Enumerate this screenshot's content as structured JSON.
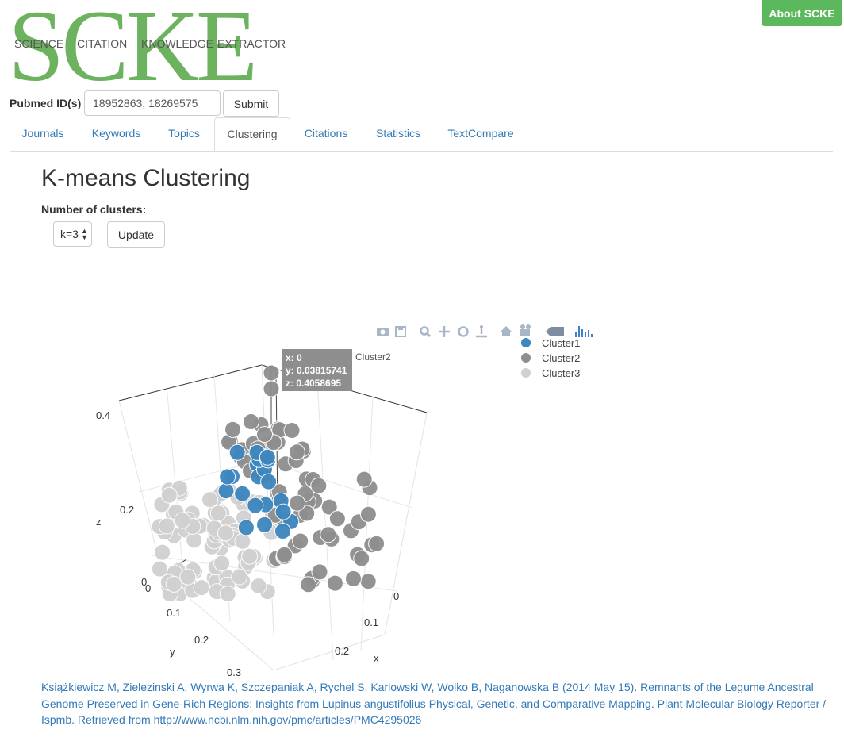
{
  "logo": {
    "letters": "SCKE",
    "words": [
      "SCIENCE",
      "CITATION",
      "KNOWLEDGE",
      "EXTRACTOR"
    ]
  },
  "header": {
    "about_label": "About SCKE"
  },
  "form": {
    "label": "Pubmed ID(s)",
    "input_value": "18952863, 18269575",
    "submit_label": "Submit"
  },
  "tabs": [
    {
      "label": "Journals",
      "active": false
    },
    {
      "label": "Keywords",
      "active": false
    },
    {
      "label": "Topics",
      "active": false
    },
    {
      "label": "Clustering",
      "active": true
    },
    {
      "label": "Citations",
      "active": false
    },
    {
      "label": "Statistics",
      "active": false
    },
    {
      "label": "TextCompare",
      "active": false
    }
  ],
  "main": {
    "title": "K-means Clustering",
    "k_label": "Number of clusters:",
    "k_value": "k=3",
    "update_label": "Update"
  },
  "plot": {
    "modebar_icons": [
      "camera-icon",
      "save-icon",
      "zoom-icon",
      "pan-icon",
      "orbit-icon",
      "turntable-icon",
      "home-icon",
      "reset-camera-icon",
      "hover-icon",
      "plotly-logo-icon"
    ],
    "tooltip": {
      "x": "x: 0",
      "y": "y: 0.03815741",
      "z": "z: 0.4058695",
      "series": "Cluster2"
    }
  },
  "chart_data": {
    "type": "scatter",
    "legend_placement": "top-right",
    "series": [
      {
        "name": "Cluster1",
        "color": "#3d86be"
      },
      {
        "name": "Cluster2",
        "color": "#8e8e8e"
      },
      {
        "name": "Cluster3",
        "color": "#d0d0d0"
      }
    ],
    "axes": {
      "x": {
        "label": "x",
        "ticks": [
          "0",
          "0.1",
          "0.2"
        ]
      },
      "y": {
        "label": "y",
        "ticks": [
          "0",
          "0.1",
          "0.2",
          "0.3"
        ]
      },
      "z": {
        "label": "z",
        "ticks": [
          "0",
          "0.2",
          "0.4"
        ]
      }
    }
  },
  "citation": "Książkiewicz M, Zielezinski A, Wyrwa K, Szczepaniak A, Rychel S, Karlowski W, Wolko B, Naganowska B (2014 May 15). Remnants of the Legume Ancestral Genome Preserved in Gene-Rich Regions: Insights from Lupinus angustifolius Physical, Genetic, and Comparative Mapping. Plant Molecular Biology Reporter / Ispmb. Retrieved from http://www.ncbi.nlm.nih.gov/pmc/articles/PMC4295026"
}
